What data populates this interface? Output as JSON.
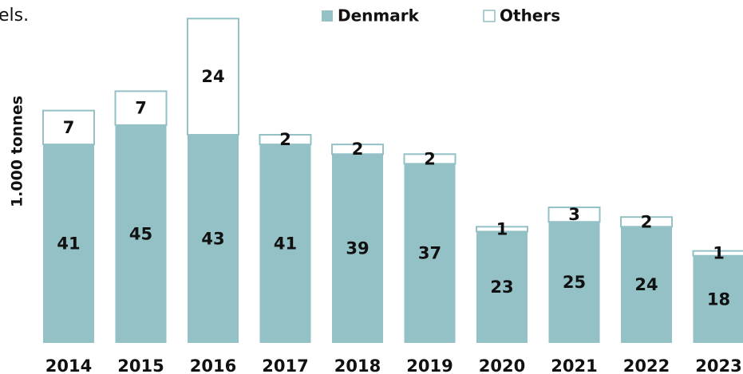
{
  "chart_data": {
    "type": "stacked_bar",
    "subtitle": "els.",
    "y_label": "1.000 tonnes",
    "categories": [
      "2014",
      "2015",
      "2016",
      "2017",
      "2018",
      "2019",
      "2020",
      "2021",
      "2022",
      "2023"
    ],
    "series": [
      {
        "name": "Denmark",
        "color": "#93c1c6",
        "values": [
          41,
          45,
          43,
          41,
          39,
          37,
          23,
          25,
          24,
          18
        ]
      },
      {
        "name": "Others",
        "color": "#ffffff",
        "edge_color": "#93c1c6",
        "values": [
          7,
          7,
          24,
          2,
          2,
          2,
          1,
          3,
          2,
          1
        ]
      }
    ],
    "ylim": [
      0,
      70
    ]
  }
}
